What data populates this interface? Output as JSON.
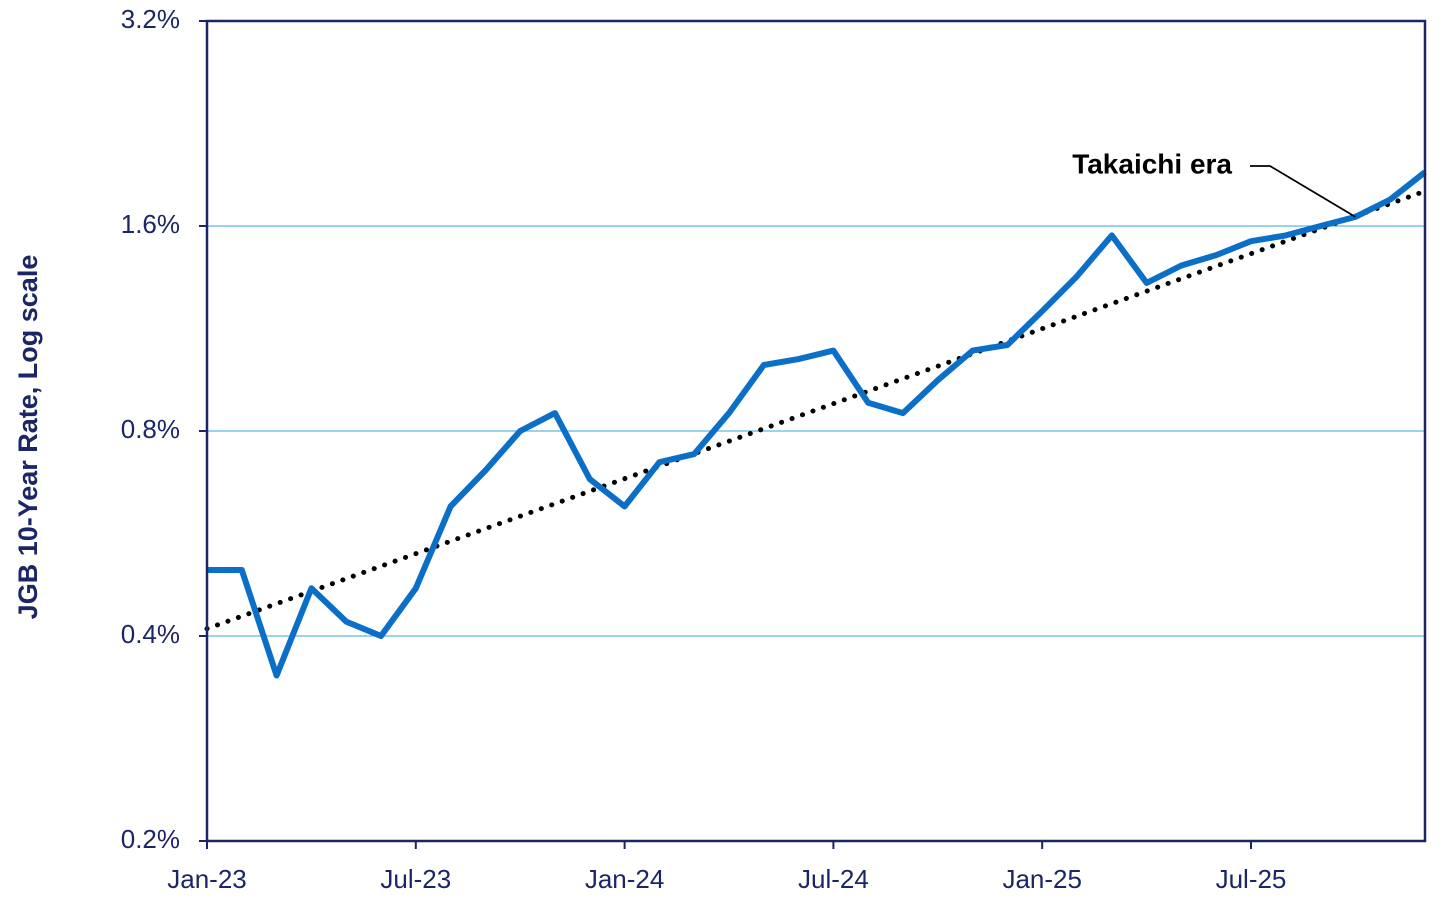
{
  "chart_data": {
    "type": "line",
    "y_label": "JGB 10-Year Rate, Log scale",
    "x": [
      "2023-01",
      "2023-02",
      "2023-03",
      "2023-04",
      "2023-05",
      "2023-06",
      "2023-07",
      "2023-08",
      "2023-09",
      "2023-10",
      "2023-11",
      "2023-12",
      "2024-01",
      "2024-02",
      "2024-03",
      "2024-04",
      "2024-05",
      "2024-06",
      "2024-07",
      "2024-08",
      "2024-09",
      "2024-10",
      "2024-11",
      "2024-12",
      "2025-01",
      "2025-02",
      "2025-03",
      "2025-04",
      "2025-05",
      "2025-06",
      "2025-07",
      "2025-08",
      "2025-09",
      "2025-10",
      "2025-11",
      "2025-12"
    ],
    "series": [
      {
        "name": "JGB 10-Year Rate",
        "color": "#0b6fc7",
        "values": [
          0.5,
          0.5,
          0.35,
          0.47,
          0.42,
          0.4,
          0.47,
          0.62,
          0.7,
          0.8,
          0.85,
          0.68,
          0.62,
          0.72,
          0.74,
          0.85,
          1.0,
          1.02,
          1.05,
          0.88,
          0.85,
          0.95,
          1.05,
          1.07,
          1.2,
          1.35,
          1.55,
          1.32,
          1.4,
          1.45,
          1.52,
          1.55,
          1.6,
          1.65,
          1.75,
          1.92
        ]
      }
    ],
    "trend": {
      "start": 0.41,
      "end": 1.8,
      "color": "#000000"
    },
    "annotation": {
      "text": "Takaichi era",
      "x": "2025-10",
      "y": 1.65
    },
    "xlim": [
      "2023-01",
      "2025-12"
    ],
    "xticks": [
      {
        "value": "2023-01",
        "label": "Jan-23"
      },
      {
        "value": "2023-07",
        "label": "Jul-23"
      },
      {
        "value": "2024-01",
        "label": "Jan-24"
      },
      {
        "value": "2024-07",
        "label": "Jul-24"
      },
      {
        "value": "2025-01",
        "label": "Jan-25"
      },
      {
        "value": "2025-07",
        "label": "Jul-25"
      }
    ],
    "ylim": [
      0.2,
      3.2
    ],
    "yticks": [
      {
        "value": 0.2,
        "label": "0.2%"
      },
      {
        "value": 0.4,
        "label": "0.4%"
      },
      {
        "value": 0.8,
        "label": "0.8%"
      },
      {
        "value": 1.6,
        "label": "1.6%"
      },
      {
        "value": 3.2,
        "label": "3.2%"
      }
    ],
    "log_scale": true,
    "grid": true
  }
}
